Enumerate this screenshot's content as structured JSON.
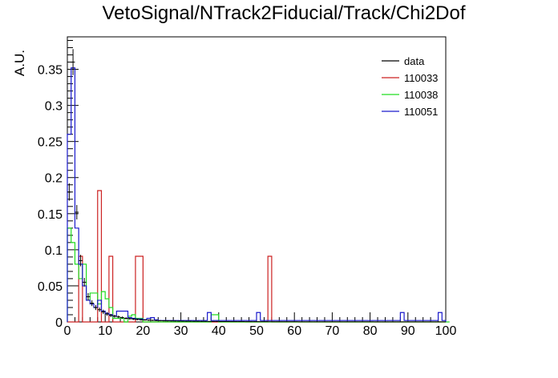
{
  "chart_data": {
    "type": "histogram",
    "title": "VetoSignal/NTrack2Fiducial/Track/Chi2Dof",
    "xlabel": "",
    "ylabel": "A.U.",
    "xlim": [
      0,
      100
    ],
    "ylim": [
      0,
      0.395
    ],
    "bin_width": 1,
    "x_ticks": [
      0,
      10,
      20,
      30,
      40,
      50,
      60,
      70,
      80,
      90,
      100
    ],
    "x_tick_labels": [
      "0",
      "10",
      "20",
      "30",
      "40",
      "50",
      "60",
      "70",
      "80",
      "90",
      "100"
    ],
    "y_ticks": [
      0,
      0.05,
      0.1,
      0.15,
      0.2,
      0.25,
      0.3,
      0.35
    ],
    "y_tick_labels": [
      "0",
      "0.05",
      "0.1",
      "0.15",
      "0.2",
      "0.25",
      "0.3",
      "0.35"
    ],
    "grid": false,
    "legend_position": "top-right",
    "legend": [
      "data",
      "110033",
      "110038",
      "110051"
    ],
    "series": [
      {
        "name": "data",
        "color": "#000000",
        "style": "points",
        "x": [
          0.5,
          1.5,
          2.5,
          3.5,
          4.5,
          5.5,
          6.5,
          7.5,
          8.5,
          9.5,
          10.5,
          11.5,
          12.5,
          13.5,
          14.5,
          15.5,
          16.5,
          17.5,
          18.5,
          19.5,
          20.5,
          21.5,
          22.5,
          23.5,
          24.5,
          25.5,
          26.5,
          27.5,
          28.5,
          29.5,
          30.5,
          31.5,
          32.5,
          33.5,
          34.5,
          35.5,
          36.5,
          37.5,
          38.5,
          39.5,
          40.5,
          41.5,
          42.5,
          43.5,
          44.5,
          45.5,
          46.5,
          47.5,
          48.5,
          49.5,
          50.5,
          51.5,
          52.5,
          53.5,
          54.5,
          55.5,
          56.5,
          57.5,
          58.5,
          59.5,
          60.5,
          61.5,
          62.5,
          63.5,
          64.5,
          65.5,
          66.5,
          67.5,
          68.5,
          69.5,
          70.5,
          71.5,
          72.5,
          73.5,
          74.5,
          75.5,
          76.5,
          77.5,
          78.5,
          79.5,
          80.5,
          81.5,
          82.5,
          83.5,
          84.5,
          85.5,
          86.5,
          87.5,
          88.5,
          89.5,
          90.5,
          91.5,
          92.5,
          93.5,
          94.5,
          95.5,
          96.5,
          97.5,
          98.5,
          99.5
        ],
        "y": [
          0.18,
          0.36,
          0.152,
          0.085,
          0.055,
          0.035,
          0.026,
          0.02,
          0.017,
          0.014,
          0.011,
          0.009,
          0.008,
          0.007,
          0.006,
          0.005,
          0.0045,
          0.004,
          0.0035,
          0.003,
          0.0028,
          0.0025,
          0.0022,
          0.002,
          0.0018,
          0.0016,
          0.0015,
          0.0014,
          0.0013,
          0.0012,
          0.0011,
          0.001,
          0.001,
          0.0009,
          0.0009,
          0.0008,
          0.0008,
          0.0007,
          0.0007,
          0.0007,
          0.0006,
          0.0006,
          0.0006,
          0.0005,
          0.0005,
          0.0005,
          0.0005,
          0.0004,
          0.0004,
          0.0004,
          0.0004,
          0.0004,
          0.0004,
          0.0003,
          0.0003,
          0.0003,
          0.0003,
          0.0003,
          0.0003,
          0.0003,
          0.0003,
          0.0002,
          0.0002,
          0.0002,
          0.0002,
          0.0002,
          0.0002,
          0.0002,
          0.0002,
          0.0002,
          0.0002,
          0.0002,
          0.0002,
          0.0002,
          0.0002,
          0.0002,
          0.0002,
          0.0002,
          0.0002,
          0.0002,
          0.0002,
          0.0001,
          0.0001,
          0.0001,
          0.0001,
          0.0001,
          0.0001,
          0.0001,
          0.0001,
          0.0001,
          0.0001,
          0.0001,
          0.0001,
          0.0001,
          0.0001,
          0.0001,
          0.0001,
          0.0001,
          0.0001,
          0.0001
        ],
        "err": [
          0.012,
          0.018,
          0.01,
          0.008,
          0.006,
          0.005,
          0.004,
          0.0035,
          0.003,
          0.003,
          0.0025,
          0.0022,
          0.002,
          0.0018,
          0.0016,
          0.0015,
          0.0014,
          0.0013,
          0.0012,
          0.0011,
          0.001,
          0.001,
          0.0009,
          0.0009,
          0.0008,
          0.0008,
          0.0008,
          0.0007,
          0.0007,
          0.0007,
          0.0007,
          0.0006,
          0.0006,
          0.0006,
          0.0006,
          0.0006,
          0.0005,
          0.0005,
          0.0005,
          0.0005,
          0.0005,
          0.0005,
          0.0005,
          0.0004,
          0.0004,
          0.0004,
          0.0004,
          0.0004,
          0.0004,
          0.0004,
          0.0004,
          0.0004,
          0.0004,
          0.0003,
          0.0003,
          0.0003,
          0.0003,
          0.0003,
          0.0003,
          0.0003,
          0.0003,
          0.0003,
          0.0003,
          0.0003,
          0.0003,
          0.0003,
          0.0003,
          0.0003,
          0.0003,
          0.0003,
          0.0003,
          0.0003,
          0.0003,
          0.0003,
          0.0003,
          0.0003,
          0.0003,
          0.0003,
          0.0003,
          0.0003,
          0.0003,
          0.0002,
          0.0002,
          0.0002,
          0.0002,
          0.0002,
          0.0002,
          0.0002,
          0.0002,
          0.0002,
          0.0002,
          0.0002,
          0.0002,
          0.0002,
          0.0002,
          0.0002,
          0.0002,
          0.0002,
          0.0002,
          0.0002
        ]
      },
      {
        "name": "110033",
        "color": "#cc2222",
        "style": "step",
        "values": [
          0,
          0,
          0,
          0.091,
          0,
          0,
          0,
          0,
          0.182,
          0,
          0,
          0.091,
          0,
          0,
          0,
          0,
          0,
          0,
          0.091,
          0.091,
          0,
          0,
          0,
          0,
          0,
          0,
          0,
          0,
          0,
          0,
          0,
          0,
          0,
          0,
          0,
          0,
          0,
          0,
          0,
          0,
          0,
          0,
          0,
          0,
          0,
          0,
          0,
          0,
          0,
          0,
          0,
          0,
          0,
          0.091,
          0,
          0,
          0,
          0,
          0,
          0,
          0,
          0,
          0,
          0,
          0,
          0,
          0,
          0,
          0,
          0,
          0,
          0,
          0,
          0,
          0,
          0,
          0,
          0,
          0,
          0,
          0,
          0,
          0,
          0,
          0,
          0,
          0,
          0,
          0,
          0,
          0,
          0,
          0,
          0,
          0,
          0,
          0,
          0,
          0,
          0
        ]
      },
      {
        "name": "110038",
        "color": "#22dd22",
        "style": "step",
        "values": [
          0.13,
          0.11,
          0.08,
          0.06,
          0.08,
          0.03,
          0.04,
          0.04,
          0.025,
          0.042,
          0.032,
          0.02,
          0.005,
          0.005,
          0.005,
          0,
          0.008,
          0.01,
          0.005,
          0.005,
          0,
          0,
          0,
          0,
          0,
          0,
          0,
          0,
          0,
          0,
          0,
          0,
          0,
          0,
          0,
          0,
          0,
          0,
          0.01,
          0.01,
          0,
          0,
          0,
          0,
          0,
          0,
          0,
          0,
          0,
          0,
          0,
          0,
          0,
          0,
          0,
          0,
          0,
          0,
          0,
          0,
          0,
          0,
          0,
          0,
          0,
          0,
          0,
          0,
          0,
          0,
          0,
          0,
          0,
          0,
          0,
          0,
          0,
          0,
          0,
          0,
          0,
          0,
          0,
          0,
          0,
          0,
          0,
          0,
          0,
          0,
          0,
          0,
          0,
          0,
          0,
          0,
          0,
          0,
          0,
          0,
          0
        ]
      },
      {
        "name": "110051",
        "color": "#1a1acc",
        "style": "step",
        "values": [
          0.26,
          0.352,
          0.13,
          0.08,
          0.05,
          0.03,
          0.025,
          0.02,
          0.03,
          0.015,
          0.012,
          0.01,
          0.008,
          0.015,
          0.015,
          0.015,
          0.006,
          0.005,
          0.004,
          0.004,
          0.003,
          0.005,
          0.006,
          0.003,
          0.002,
          0.002,
          0.002,
          0.002,
          0.002,
          0.002,
          0.002,
          0.002,
          0.002,
          0.002,
          0.002,
          0.002,
          0.002,
          0.013,
          0.002,
          0.002,
          0.002,
          0.002,
          0.002,
          0.002,
          0.002,
          0.002,
          0.002,
          0.002,
          0.002,
          0.002,
          0.013,
          0.002,
          0.002,
          0.002,
          0.002,
          0.002,
          0.002,
          0.002,
          0.002,
          0.002,
          0.002,
          0.002,
          0.002,
          0.002,
          0.002,
          0.002,
          0.002,
          0.002,
          0.002,
          0.002,
          0.002,
          0.002,
          0.002,
          0.002,
          0.002,
          0.002,
          0.002,
          0.002,
          0.002,
          0.002,
          0.002,
          0.002,
          0.002,
          0.002,
          0.002,
          0.002,
          0.002,
          0.002,
          0.013,
          0.002,
          0.002,
          0.002,
          0.002,
          0.002,
          0.002,
          0.002,
          0.002,
          0.002,
          0.013,
          0.002
        ]
      }
    ]
  }
}
